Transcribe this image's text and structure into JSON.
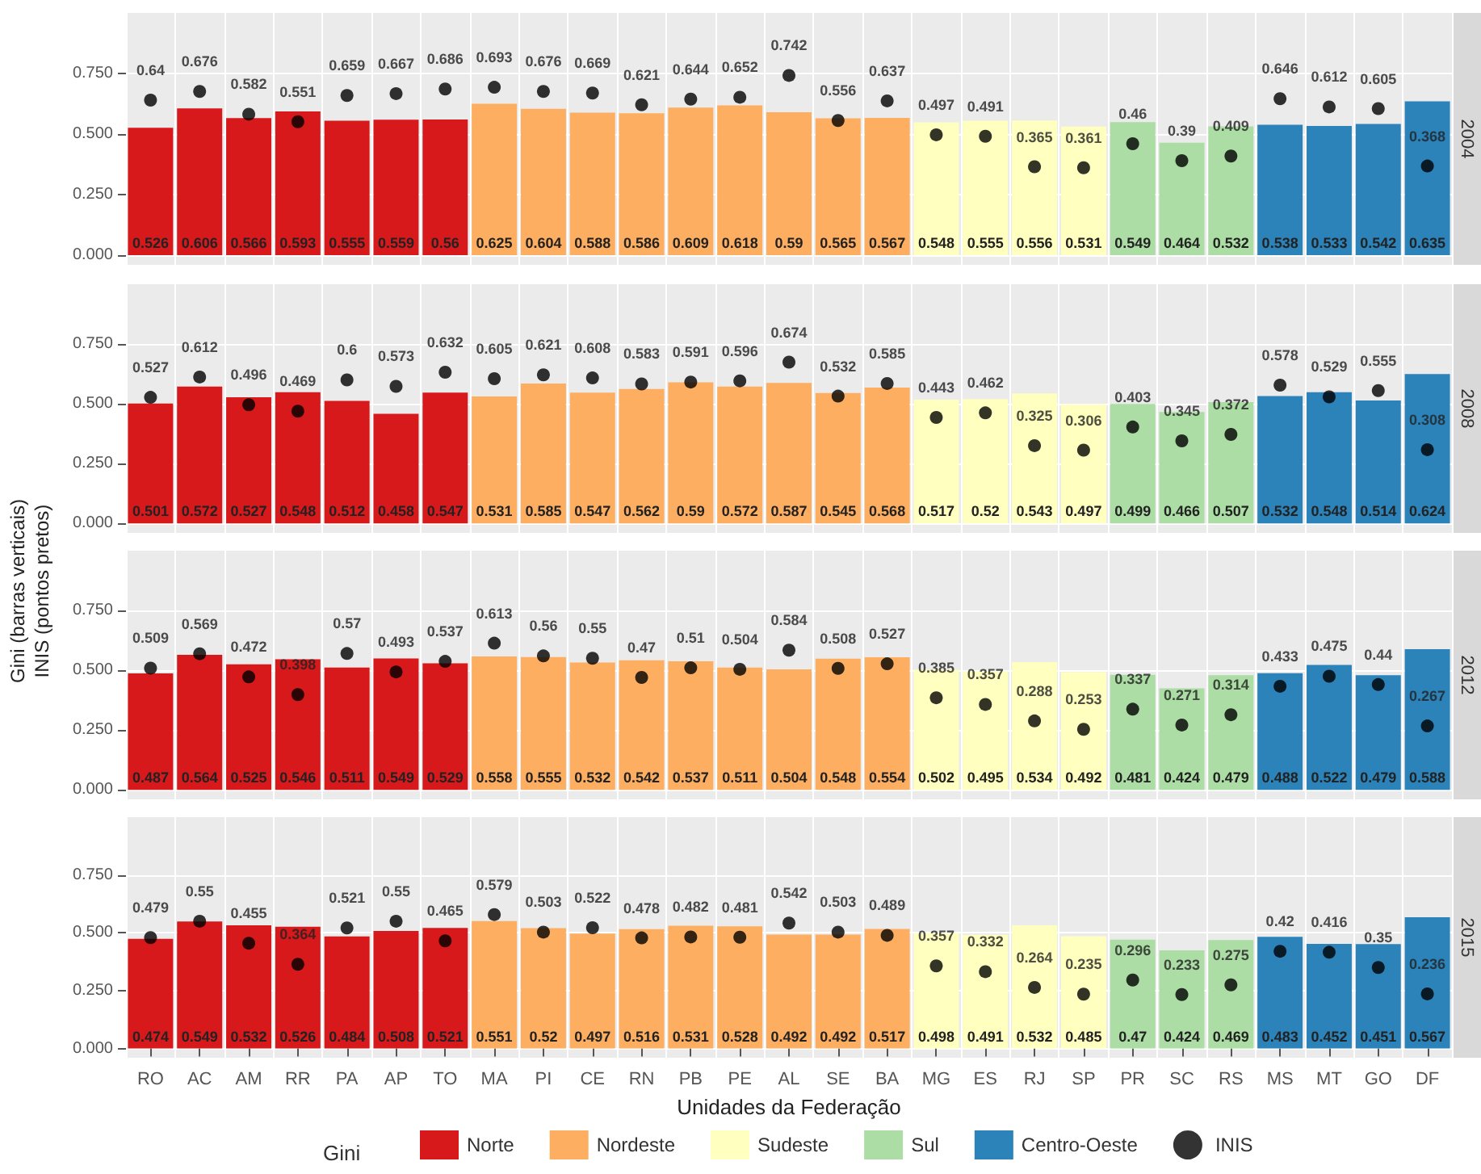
{
  "chart_data": [
    {
      "type": "bar",
      "title": "2004",
      "categories": [
        "RO",
        "AC",
        "AM",
        "RR",
        "PA",
        "AP",
        "TO",
        "MA",
        "PI",
        "CE",
        "RN",
        "PB",
        "PE",
        "AL",
        "SE",
        "BA",
        "MG",
        "ES",
        "RJ",
        "SP",
        "PR",
        "SC",
        "RS",
        "MS",
        "MT",
        "GO",
        "DF"
      ],
      "tick_labels": "y",
      "ylim": [
        -0.04,
        1.0
      ],
      "yticks": [
        {
          "value": 0,
          "label": "0.000"
        },
        {
          "value": 0.25,
          "label": "0.250"
        },
        {
          "value": 0.5,
          "label": "0.500"
        },
        {
          "value": 0.75,
          "label": "0.750"
        }
      ],
      "grid": true,
      "data_labels": true,
      "marker": "circle",
      "series": [
        {
          "name": "Norte",
          "color": "#d7191c",
          "values": [
            0.526,
            0.606,
            0.566,
            0.593,
            0.555,
            0.559,
            0.56,
            null,
            null,
            null,
            null,
            null,
            null,
            null,
            null,
            null,
            null,
            null,
            null,
            null,
            null,
            null,
            null,
            null,
            null,
            null,
            null
          ]
        },
        {
          "name": "Nordeste",
          "color": "#fdae61",
          "values": [
            null,
            null,
            null,
            null,
            null,
            null,
            null,
            0.625,
            0.604,
            0.588,
            0.586,
            0.609,
            0.618,
            0.59,
            0.565,
            0.567,
            null,
            null,
            null,
            null,
            null,
            null,
            null,
            null,
            null,
            null,
            null
          ]
        },
        {
          "name": "Sudeste",
          "color": "#ffffbf",
          "values": [
            null,
            null,
            null,
            null,
            null,
            null,
            null,
            null,
            null,
            null,
            null,
            null,
            null,
            null,
            null,
            null,
            0.548,
            0.555,
            0.556,
            0.531,
            null,
            null,
            null,
            null,
            null,
            null,
            null
          ]
        },
        {
          "name": "Sul",
          "color": "#abdda4",
          "values": [
            null,
            null,
            null,
            null,
            null,
            null,
            null,
            null,
            null,
            null,
            null,
            null,
            null,
            null,
            null,
            null,
            null,
            null,
            null,
            null,
            0.549,
            0.464,
            0.532,
            null,
            null,
            null,
            null
          ]
        },
        {
          "name": "Centro-Oeste",
          "color": "#2b83ba",
          "values": [
            null,
            null,
            null,
            null,
            null,
            null,
            null,
            null,
            null,
            null,
            null,
            null,
            null,
            null,
            null,
            null,
            null,
            null,
            null,
            null,
            null,
            null,
            null,
            0.538,
            0.533,
            0.542,
            0.635
          ]
        },
        {
          "type": "scatter",
          "color": "#000000",
          "x": [
            "RO",
            "AC",
            "AM",
            "RR",
            "PA",
            "AP",
            "TO",
            "MA",
            "PI",
            "CE",
            "RN",
            "PB",
            "PE",
            "AL",
            "SE",
            "BA",
            "MG",
            "ES",
            "RJ",
            "SP",
            "PR",
            "SC",
            "RS",
            "MS",
            "MT",
            "GO",
            "DF"
          ],
          "values": [
            0.64,
            0.676,
            0.582,
            0.551,
            0.659,
            0.667,
            0.686,
            0.693,
            0.676,
            0.669,
            0.621,
            0.644,
            0.652,
            0.742,
            0.556,
            0.637,
            0.497,
            0.491,
            0.365,
            0.361,
            0.46,
            0.39,
            0.409,
            0.646,
            0.612,
            0.605,
            0.368
          ]
        }
      ]
    },
    {
      "type": "bar",
      "title": "2008",
      "ylabel": "Gini (barras verticais)\nINIS (pontos pretos)",
      "categories": [
        "RO",
        "AC",
        "AM",
        "RR",
        "PA",
        "AP",
        "TO",
        "MA",
        "PI",
        "CE",
        "RN",
        "PB",
        "PE",
        "AL",
        "SE",
        "BA",
        "MG",
        "ES",
        "RJ",
        "SP",
        "PR",
        "SC",
        "RS",
        "MS",
        "MT",
        "GO",
        "DF"
      ],
      "tick_labels": "y",
      "ylim": [
        -0.04,
        1.0
      ],
      "yticks": [
        {
          "value": 0,
          "label": "0.000"
        },
        {
          "value": 0.25,
          "label": "0.250"
        },
        {
          "value": 0.5,
          "label": "0.500"
        },
        {
          "value": 0.75,
          "label": "0.750"
        }
      ],
      "grid": true,
      "data_labels": true,
      "marker": "circle",
      "series": [
        {
          "name": "Norte",
          "color": "#d7191c",
          "values": [
            0.501,
            0.572,
            0.527,
            0.548,
            0.512,
            0.458,
            0.547,
            null,
            null,
            null,
            null,
            null,
            null,
            null,
            null,
            null,
            null,
            null,
            null,
            null,
            null,
            null,
            null,
            null,
            null,
            null,
            null
          ]
        },
        {
          "name": "Nordeste",
          "color": "#fdae61",
          "values": [
            null,
            null,
            null,
            null,
            null,
            null,
            null,
            0.531,
            0.585,
            0.547,
            0.562,
            0.59,
            0.572,
            0.587,
            0.545,
            0.568,
            null,
            null,
            null,
            null,
            null,
            null,
            null,
            null,
            null,
            null,
            null
          ]
        },
        {
          "name": "Sudeste",
          "color": "#ffffbf",
          "values": [
            null,
            null,
            null,
            null,
            null,
            null,
            null,
            null,
            null,
            null,
            null,
            null,
            null,
            null,
            null,
            null,
            0.517,
            0.52,
            0.543,
            0.497,
            null,
            null,
            null,
            null,
            null,
            null,
            null
          ]
        },
        {
          "name": "Sul",
          "color": "#abdda4",
          "values": [
            null,
            null,
            null,
            null,
            null,
            null,
            null,
            null,
            null,
            null,
            null,
            null,
            null,
            null,
            null,
            null,
            null,
            null,
            null,
            null,
            0.499,
            0.466,
            0.507,
            null,
            null,
            null,
            null
          ]
        },
        {
          "name": "Centro-Oeste",
          "color": "#2b83ba",
          "values": [
            null,
            null,
            null,
            null,
            null,
            null,
            null,
            null,
            null,
            null,
            null,
            null,
            null,
            null,
            null,
            null,
            null,
            null,
            null,
            null,
            null,
            null,
            null,
            0.532,
            0.548,
            0.514,
            0.624
          ]
        },
        {
          "type": "scatter",
          "color": "#000000",
          "x": [
            "RO",
            "AC",
            "AM",
            "RR",
            "PA",
            "AP",
            "TO",
            "MA",
            "PI",
            "CE",
            "RN",
            "PB",
            "PE",
            "AL",
            "SE",
            "BA",
            "MG",
            "ES",
            "RJ",
            "SP",
            "PR",
            "SC",
            "RS",
            "MS",
            "MT",
            "GO",
            "DF"
          ],
          "values": [
            0.527,
            0.612,
            0.496,
            0.469,
            0.6,
            0.573,
            0.632,
            0.605,
            0.621,
            0.608,
            0.583,
            0.591,
            0.596,
            0.674,
            0.532,
            0.585,
            0.443,
            0.462,
            0.325,
            0.306,
            0.403,
            0.345,
            0.372,
            0.578,
            0.529,
            0.555,
            0.308
          ]
        }
      ]
    },
    {
      "type": "bar",
      "title": "2012",
      "categories": [
        "RO",
        "AC",
        "AM",
        "RR",
        "PA",
        "AP",
        "TO",
        "MA",
        "PI",
        "CE",
        "RN",
        "PB",
        "PE",
        "AL",
        "SE",
        "BA",
        "MG",
        "ES",
        "RJ",
        "SP",
        "PR",
        "SC",
        "RS",
        "MS",
        "MT",
        "GO",
        "DF"
      ],
      "tick_labels": "y",
      "ylim": [
        -0.04,
        1.0
      ],
      "yticks": [
        {
          "value": 0,
          "label": "0.000"
        },
        {
          "value": 0.25,
          "label": "0.250"
        },
        {
          "value": 0.5,
          "label": "0.500"
        },
        {
          "value": 0.75,
          "label": "0.750"
        }
      ],
      "grid": true,
      "data_labels": true,
      "marker": "circle",
      "series": [
        {
          "name": "Norte",
          "color": "#d7191c",
          "values": [
            0.487,
            0.564,
            0.525,
            0.546,
            0.511,
            0.549,
            0.529,
            null,
            null,
            null,
            null,
            null,
            null,
            null,
            null,
            null,
            null,
            null,
            null,
            null,
            null,
            null,
            null,
            null,
            null,
            null,
            null
          ]
        },
        {
          "name": "Nordeste",
          "color": "#fdae61",
          "values": [
            null,
            null,
            null,
            null,
            null,
            null,
            null,
            0.558,
            0.555,
            0.532,
            0.542,
            0.537,
            0.511,
            0.504,
            0.548,
            0.554,
            null,
            null,
            null,
            null,
            null,
            null,
            null,
            null,
            null,
            null,
            null
          ]
        },
        {
          "name": "Sudeste",
          "color": "#ffffbf",
          "values": [
            null,
            null,
            null,
            null,
            null,
            null,
            null,
            null,
            null,
            null,
            null,
            null,
            null,
            null,
            null,
            null,
            0.502,
            0.495,
            0.534,
            0.492,
            null,
            null,
            null,
            null,
            null,
            null,
            null
          ]
        },
        {
          "name": "Sul",
          "color": "#abdda4",
          "values": [
            null,
            null,
            null,
            null,
            null,
            null,
            null,
            null,
            null,
            null,
            null,
            null,
            null,
            null,
            null,
            null,
            null,
            null,
            null,
            null,
            0.481,
            0.424,
            0.479,
            null,
            null,
            null,
            null
          ]
        },
        {
          "name": "Centro-Oeste",
          "color": "#2b83ba",
          "values": [
            null,
            null,
            null,
            null,
            null,
            null,
            null,
            null,
            null,
            null,
            null,
            null,
            null,
            null,
            null,
            null,
            null,
            null,
            null,
            null,
            null,
            null,
            null,
            0.488,
            0.522,
            0.479,
            0.588
          ]
        },
        {
          "type": "scatter",
          "color": "#000000",
          "x": [
            "RO",
            "AC",
            "AM",
            "RR",
            "PA",
            "AP",
            "TO",
            "MA",
            "PI",
            "CE",
            "RN",
            "PB",
            "PE",
            "AL",
            "SE",
            "BA",
            "MG",
            "ES",
            "RJ",
            "SP",
            "PR",
            "SC",
            "RS",
            "MS",
            "MT",
            "GO",
            "DF"
          ],
          "values": [
            0.509,
            0.569,
            0.472,
            0.398,
            0.57,
            0.493,
            0.537,
            0.613,
            0.56,
            0.55,
            0.47,
            0.51,
            0.504,
            0.584,
            0.508,
            0.527,
            0.385,
            0.357,
            0.288,
            0.253,
            0.337,
            0.271,
            0.314,
            0.433,
            0.475,
            0.44,
            0.267
          ]
        }
      ]
    },
    {
      "type": "bar",
      "title": "2015",
      "xlabel": "Unidades da Federação",
      "legend": "bottom",
      "legend_title": "Gini",
      "categories": [
        "RO",
        "AC",
        "AM",
        "RR",
        "PA",
        "AP",
        "TO",
        "MA",
        "PI",
        "CE",
        "RN",
        "PB",
        "PE",
        "AL",
        "SE",
        "BA",
        "MG",
        "ES",
        "RJ",
        "SP",
        "PR",
        "SC",
        "RS",
        "MS",
        "MT",
        "GO",
        "DF"
      ],
      "ylim": [
        -0.04,
        1.0
      ],
      "yticks": [
        {
          "value": 0,
          "label": "0.000"
        },
        {
          "value": 0.25,
          "label": "0.250"
        },
        {
          "value": 0.5,
          "label": "0.500"
        },
        {
          "value": 0.75,
          "label": "0.750"
        }
      ],
      "grid": true,
      "data_labels": true,
      "marker": "circle",
      "series": [
        {
          "name": "Norte",
          "color": "#d7191c",
          "values": [
            0.474,
            0.549,
            0.532,
            0.526,
            0.484,
            0.508,
            0.521,
            null,
            null,
            null,
            null,
            null,
            null,
            null,
            null,
            null,
            null,
            null,
            null,
            null,
            null,
            null,
            null,
            null,
            null,
            null,
            null
          ]
        },
        {
          "name": "Nordeste",
          "color": "#fdae61",
          "values": [
            null,
            null,
            null,
            null,
            null,
            null,
            null,
            0.551,
            0.52,
            0.497,
            0.516,
            0.531,
            0.528,
            0.492,
            0.492,
            0.517,
            null,
            null,
            null,
            null,
            null,
            null,
            null,
            null,
            null,
            null,
            null
          ]
        },
        {
          "name": "Sudeste",
          "color": "#ffffbf",
          "values": [
            null,
            null,
            null,
            null,
            null,
            null,
            null,
            null,
            null,
            null,
            null,
            null,
            null,
            null,
            null,
            null,
            0.498,
            0.491,
            0.532,
            0.485,
            null,
            null,
            null,
            null,
            null,
            null,
            null
          ]
        },
        {
          "name": "Sul",
          "color": "#abdda4",
          "values": [
            null,
            null,
            null,
            null,
            null,
            null,
            null,
            null,
            null,
            null,
            null,
            null,
            null,
            null,
            null,
            null,
            null,
            null,
            null,
            null,
            0.47,
            0.424,
            0.469,
            null,
            null,
            null,
            null
          ]
        },
        {
          "name": "Centro-Oeste",
          "color": "#2b83ba",
          "values": [
            null,
            null,
            null,
            null,
            null,
            null,
            null,
            null,
            null,
            null,
            null,
            null,
            null,
            null,
            null,
            null,
            null,
            null,
            null,
            null,
            null,
            null,
            null,
            0.483,
            0.452,
            0.451,
            0.567
          ]
        },
        {
          "name": "INIS",
          "type": "scatter",
          "color": "#000000",
          "x": [
            "RO",
            "AC",
            "AM",
            "RR",
            "PA",
            "AP",
            "TO",
            "MA",
            "PI",
            "CE",
            "RN",
            "PB",
            "PE",
            "AL",
            "SE",
            "BA",
            "MG",
            "ES",
            "RJ",
            "SP",
            "PR",
            "SC",
            "RS",
            "MS",
            "MT",
            "GO",
            "DF"
          ],
          "values": [
            0.479,
            0.55,
            0.455,
            0.364,
            0.521,
            0.55,
            0.465,
            0.579,
            0.503,
            0.522,
            0.478,
            0.482,
            0.481,
            0.542,
            0.503,
            0.489,
            0.357,
            0.332,
            0.264,
            0.235,
            0.296,
            0.233,
            0.275,
            0.42,
            0.416,
            0.35,
            0.236
          ]
        }
      ]
    }
  ]
}
